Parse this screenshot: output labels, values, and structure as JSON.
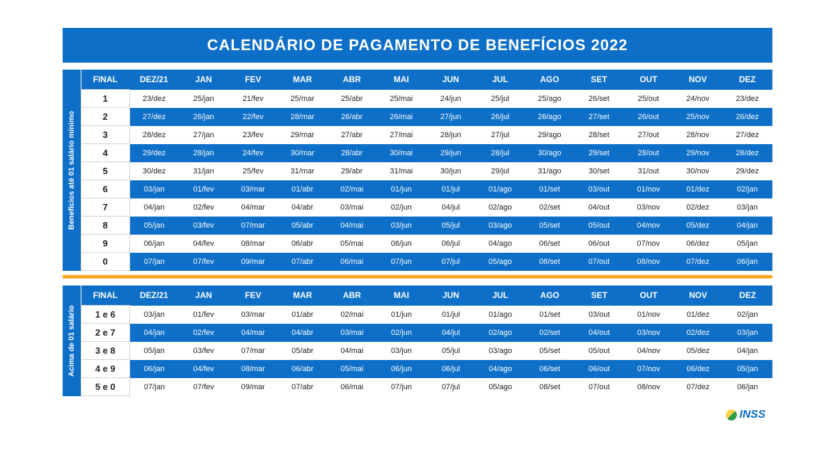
{
  "title": "CALENDÁRIO DE PAGAMENTO DE BENEFÍCIOS 2022",
  "header_color": "#0d6fc7",
  "row_blue_color": "#0d6fc7",
  "row_white_color": "#ffffff",
  "divider_color": "#f5a623",
  "columns": [
    "FINAL",
    "DEZ/21",
    "JAN",
    "FEV",
    "MAR",
    "ABR",
    "MAI",
    "JUN",
    "JUL",
    "AGO",
    "SET",
    "OUT",
    "NOV",
    "DEZ"
  ],
  "section1": {
    "side_label": "Benefícios até 01 salário mínimo",
    "rows": [
      {
        "final": "1",
        "cells": [
          "23/dez",
          "25/jan",
          "21/fev",
          "25/mar",
          "25/abr",
          "25/mai",
          "24/jun",
          "25/jul",
          "25/ago",
          "26/set",
          "25/out",
          "24/nov",
          "23/dez"
        ],
        "style": "white"
      },
      {
        "final": "2",
        "cells": [
          "27/dez",
          "26/jan",
          "22/fev",
          "28/mar",
          "26/abr",
          "26/mai",
          "27/jun",
          "26/jul",
          "26/ago",
          "27/set",
          "26/out",
          "25/nov",
          "26/dez"
        ],
        "style": "blue"
      },
      {
        "final": "3",
        "cells": [
          "28/dez",
          "27/jan",
          "23/fev",
          "29/mar",
          "27/abr",
          "27/mai",
          "28/jun",
          "27/jul",
          "29/ago",
          "28/set",
          "27/out",
          "28/nov",
          "27/dez"
        ],
        "style": "white"
      },
      {
        "final": "4",
        "cells": [
          "29/dez",
          "28/jan",
          "24/fev",
          "30/mar",
          "28/abr",
          "30/mai",
          "29/jun",
          "28/jul",
          "30/ago",
          "29/set",
          "28/out",
          "29/nov",
          "28/dez"
        ],
        "style": "blue"
      },
      {
        "final": "5",
        "cells": [
          "30/dez",
          "31/jan",
          "25/fev",
          "31/mar",
          "29/abr",
          "31/mai",
          "30/jun",
          "29/jul",
          "31/ago",
          "30/set",
          "31/out",
          "30/nov",
          "29/dez"
        ],
        "style": "white"
      },
      {
        "final": "6",
        "cells": [
          "03/jan",
          "01/fev",
          "03/mar",
          "01/abr",
          "02/mai",
          "01/jun",
          "01/jul",
          "01/ago",
          "01/set",
          "03/out",
          "01/nov",
          "01/dez",
          "02/jan"
        ],
        "style": "blue"
      },
      {
        "final": "7",
        "cells": [
          "04/jan",
          "02/fev",
          "04/mar",
          "04/abr",
          "03/mai",
          "02/jun",
          "04/jul",
          "02/ago",
          "02/set",
          "04/out",
          "03/nov",
          "02/dez",
          "03/jan"
        ],
        "style": "white"
      },
      {
        "final": "8",
        "cells": [
          "05/jan",
          "03/fev",
          "07/mar",
          "05/abr",
          "04/mai",
          "03/jun",
          "05/jul",
          "03/ago",
          "05/set",
          "05/out",
          "04/nov",
          "05/dez",
          "04/jan"
        ],
        "style": "blue"
      },
      {
        "final": "9",
        "cells": [
          "06/jan",
          "04/fev",
          "08/mar",
          "06/abr",
          "05/mai",
          "06/jun",
          "06/jul",
          "04/ago",
          "06/set",
          "06/out",
          "07/nov",
          "06/dez",
          "05/jan"
        ],
        "style": "white"
      },
      {
        "final": "0",
        "cells": [
          "07/jan",
          "07/fev",
          "09/mar",
          "07/abr",
          "06/mai",
          "07/jun",
          "07/jul",
          "05/ago",
          "08/set",
          "07/out",
          "08/nov",
          "07/dez",
          "06/jan"
        ],
        "style": "blue"
      }
    ]
  },
  "section2": {
    "side_label": "Acima de 01 salário",
    "rows": [
      {
        "final": "1 e 6",
        "cells": [
          "03/jan",
          "01/fev",
          "03/mar",
          "01/abr",
          "02/mai",
          "01/jun",
          "01/jul",
          "01/ago",
          "01/set",
          "03/out",
          "01/nov",
          "01/dez",
          "02/jan"
        ],
        "style": "white"
      },
      {
        "final": "2 e 7",
        "cells": [
          "04/jan",
          "02/fev",
          "04/mar",
          "04/abr",
          "03/mai",
          "02/jun",
          "04/jul",
          "02/ago",
          "02/set",
          "04/out",
          "03/nov",
          "02/dez",
          "03/jan"
        ],
        "style": "blue"
      },
      {
        "final": "3 e 8",
        "cells": [
          "05/jan",
          "03/fev",
          "07/mar",
          "05/abr",
          "04/mai",
          "03/jun",
          "05/jul",
          "03/ago",
          "05/set",
          "05/out",
          "04/nov",
          "05/dez",
          "04/jan"
        ],
        "style": "white"
      },
      {
        "final": "4 e 9",
        "cells": [
          "06/jan",
          "04/fev",
          "08/mar",
          "06/abr",
          "05/mai",
          "06/jun",
          "06/jul",
          "04/ago",
          "06/set",
          "06/out",
          "07/nov",
          "06/dez",
          "05/jan"
        ],
        "style": "blue"
      },
      {
        "final": "5 e 0",
        "cells": [
          "07/jan",
          "07/fev",
          "09/mar",
          "07/abr",
          "06/mai",
          "07/jun",
          "07/jul",
          "05/ago",
          "08/set",
          "07/out",
          "08/nov",
          "07/dez",
          "06/jan"
        ],
        "style": "white"
      }
    ]
  },
  "logo_text": "INSS"
}
